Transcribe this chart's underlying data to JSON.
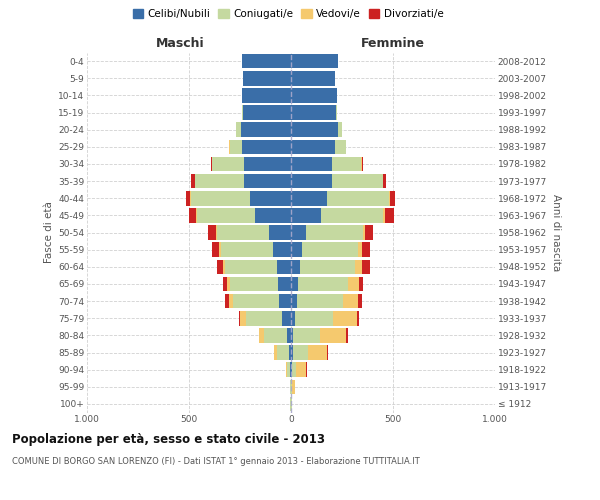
{
  "age_groups": [
    "100+",
    "95-99",
    "90-94",
    "85-89",
    "80-84",
    "75-79",
    "70-74",
    "65-69",
    "60-64",
    "55-59",
    "50-54",
    "45-49",
    "40-44",
    "35-39",
    "30-34",
    "25-29",
    "20-24",
    "15-19",
    "10-14",
    "5-9",
    "0-4"
  ],
  "birth_years": [
    "≤ 1912",
    "1913-1917",
    "1918-1922",
    "1923-1927",
    "1928-1932",
    "1933-1937",
    "1938-1942",
    "1943-1947",
    "1948-1952",
    "1953-1957",
    "1958-1962",
    "1963-1967",
    "1968-1972",
    "1973-1977",
    "1978-1982",
    "1983-1987",
    "1988-1992",
    "1993-1997",
    "1998-2002",
    "2003-2007",
    "2008-2012"
  ],
  "male": {
    "celibi": [
      2,
      2,
      5,
      8,
      20,
      45,
      60,
      65,
      70,
      90,
      110,
      175,
      200,
      230,
      230,
      240,
      245,
      235,
      240,
      235,
      240
    ],
    "coniugati": [
      1,
      3,
      15,
      60,
      110,
      175,
      225,
      235,
      255,
      255,
      255,
      285,
      290,
      240,
      155,
      60,
      25,
      5,
      2,
      0,
      0
    ],
    "vedovi": [
      0,
      2,
      5,
      15,
      25,
      30,
      20,
      15,
      10,
      8,
      5,
      5,
      5,
      3,
      2,
      2,
      0,
      0,
      0,
      0,
      0
    ],
    "divorziati": [
      0,
      0,
      0,
      0,
      2,
      5,
      20,
      20,
      30,
      35,
      35,
      35,
      20,
      15,
      5,
      2,
      2,
      0,
      0,
      0,
      0
    ]
  },
  "female": {
    "nubili": [
      2,
      2,
      5,
      8,
      12,
      20,
      30,
      35,
      45,
      55,
      75,
      145,
      175,
      200,
      200,
      215,
      230,
      220,
      225,
      215,
      230
    ],
    "coniugate": [
      1,
      5,
      20,
      75,
      130,
      185,
      225,
      245,
      270,
      275,
      280,
      305,
      305,
      250,
      145,
      55,
      20,
      5,
      2,
      0,
      0
    ],
    "vedove": [
      1,
      15,
      50,
      95,
      130,
      120,
      75,
      55,
      35,
      20,
      10,
      10,
      5,
      3,
      2,
      0,
      0,
      0,
      0,
      0,
      0
    ],
    "divorziate": [
      0,
      0,
      2,
      2,
      5,
      10,
      20,
      20,
      35,
      35,
      35,
      45,
      25,
      15,
      5,
      2,
      0,
      0,
      0,
      0,
      0
    ]
  },
  "colors": {
    "celibi": "#3a6ea8",
    "coniugati": "#c5d9a0",
    "vedovi": "#f5c96e",
    "divorziati": "#cc2222"
  },
  "xlim": 1000,
  "title": "Popolazione per età, sesso e stato civile - 2013",
  "subtitle": "COMUNE DI BORGO SAN LORENZO (FI) - Dati ISTAT 1° gennaio 2013 - Elaborazione TUTTITALIA.IT",
  "ylabel_left": "Fasce di età",
  "ylabel_right": "Anni di nascita",
  "xlabel_left": "Maschi",
  "xlabel_right": "Femmine",
  "background_color": "#ffffff",
  "grid_color": "#cccccc"
}
